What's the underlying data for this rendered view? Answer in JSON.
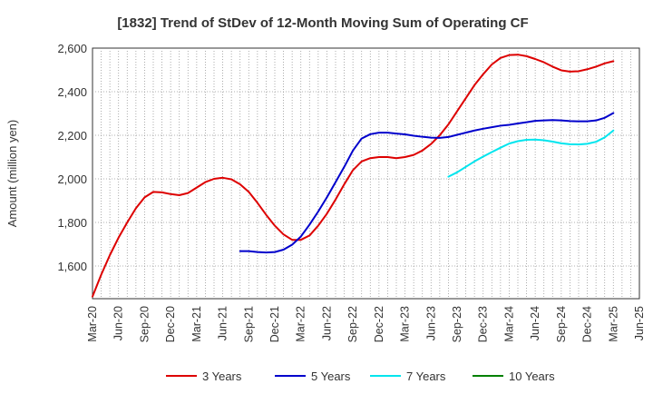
{
  "chart_data": {
    "type": "line",
    "title": "[1832]  Trend of StDev of 12-Month Moving Sum of Operating CF",
    "ylabel": "Amount (million yen)",
    "xlabel": "",
    "ylim": [
      1450,
      2600
    ],
    "yticks": [
      1600,
      1800,
      2000,
      2200,
      2400,
      2600
    ],
    "ytick_labels": [
      "1,600",
      "1,800",
      "2,000",
      "2,200",
      "2,400",
      "2,600"
    ],
    "xticks": [
      "Mar-20",
      "Jun-20",
      "Sep-20",
      "Dec-20",
      "Mar-21",
      "Jun-21",
      "Sep-21",
      "Dec-21",
      "Mar-22",
      "Jun-22",
      "Sep-22",
      "Dec-22",
      "Mar-23",
      "Jun-23",
      "Sep-23",
      "Dec-23",
      "Mar-24",
      "Jun-24",
      "Sep-24",
      "Dec-24",
      "Mar-25",
      "Jun-25"
    ],
    "grid": true,
    "legend_position": "bottom",
    "series": [
      {
        "name": "3 Years",
        "color": "#dd0000",
        "points": [
          [
            "Mar-20",
            1460
          ],
          [
            "Apr-20",
            1560
          ],
          [
            "May-20",
            1650
          ],
          [
            "Jun-20",
            1730
          ],
          [
            "Jul-20",
            1800
          ],
          [
            "Aug-20",
            1865
          ],
          [
            "Sep-20",
            1915
          ],
          [
            "Oct-20",
            1940
          ],
          [
            "Nov-20",
            1938
          ],
          [
            "Dec-20",
            1930
          ],
          [
            "Jan-21",
            1925
          ],
          [
            "Feb-21",
            1935
          ],
          [
            "Mar-21",
            1960
          ],
          [
            "Apr-21",
            1985
          ],
          [
            "May-21",
            2000
          ],
          [
            "Jun-21",
            2005
          ],
          [
            "Jul-21",
            1998
          ],
          [
            "Aug-21",
            1975
          ],
          [
            "Sep-21",
            1940
          ],
          [
            "Oct-21",
            1890
          ],
          [
            "Nov-21",
            1835
          ],
          [
            "Dec-21",
            1785
          ],
          [
            "Jan-22",
            1745
          ],
          [
            "Feb-22",
            1720
          ],
          [
            "Mar-22",
            1720
          ],
          [
            "Apr-22",
            1740
          ],
          [
            "May-22",
            1785
          ],
          [
            "Jun-22",
            1840
          ],
          [
            "Jul-22",
            1905
          ],
          [
            "Aug-22",
            1975
          ],
          [
            "Sep-22",
            2040
          ],
          [
            "Oct-22",
            2080
          ],
          [
            "Nov-22",
            2095
          ],
          [
            "Dec-22",
            2100
          ],
          [
            "Jan-23",
            2100
          ],
          [
            "Feb-23",
            2095
          ],
          [
            "Mar-23",
            2100
          ],
          [
            "Apr-23",
            2110
          ],
          [
            "May-23",
            2130
          ],
          [
            "Jun-23",
            2160
          ],
          [
            "Jul-23",
            2200
          ],
          [
            "Aug-23",
            2250
          ],
          [
            "Sep-23",
            2310
          ],
          [
            "Oct-23",
            2370
          ],
          [
            "Nov-23",
            2430
          ],
          [
            "Dec-23",
            2480
          ],
          [
            "Jan-24",
            2525
          ],
          [
            "Feb-24",
            2555
          ],
          [
            "Mar-24",
            2568
          ],
          [
            "Apr-24",
            2570
          ],
          [
            "May-24",
            2563
          ],
          [
            "Jun-24",
            2550
          ],
          [
            "Jul-24",
            2535
          ],
          [
            "Aug-24",
            2515
          ],
          [
            "Sep-24",
            2498
          ],
          [
            "Oct-24",
            2492
          ],
          [
            "Nov-24",
            2494
          ],
          [
            "Dec-24",
            2503
          ],
          [
            "Jan-25",
            2515
          ],
          [
            "Feb-25",
            2530
          ],
          [
            "Mar-25",
            2540
          ]
        ]
      },
      {
        "name": "5 Years",
        "color": "#0000cc",
        "points": [
          [
            "Aug-21",
            1668
          ],
          [
            "Sep-21",
            1668
          ],
          [
            "Oct-21",
            1664
          ],
          [
            "Nov-21",
            1662
          ],
          [
            "Dec-21",
            1664
          ],
          [
            "Jan-22",
            1675
          ],
          [
            "Feb-22",
            1698
          ],
          [
            "Mar-22",
            1735
          ],
          [
            "Apr-22",
            1790
          ],
          [
            "May-22",
            1850
          ],
          [
            "Jun-22",
            1915
          ],
          [
            "Jul-22",
            1985
          ],
          [
            "Aug-22",
            2055
          ],
          [
            "Sep-22",
            2130
          ],
          [
            "Oct-22",
            2185
          ],
          [
            "Nov-22",
            2205
          ],
          [
            "Dec-22",
            2212
          ],
          [
            "Jan-23",
            2212
          ],
          [
            "Feb-23",
            2208
          ],
          [
            "Mar-23",
            2204
          ],
          [
            "Apr-23",
            2198
          ],
          [
            "May-23",
            2193
          ],
          [
            "Jun-23",
            2189
          ],
          [
            "Jul-23",
            2188
          ],
          [
            "Aug-23",
            2192
          ],
          [
            "Sep-23",
            2202
          ],
          [
            "Oct-23",
            2212
          ],
          [
            "Nov-23",
            2222
          ],
          [
            "Dec-23",
            2230
          ],
          [
            "Jan-24",
            2237
          ],
          [
            "Feb-24",
            2244
          ],
          [
            "Mar-24",
            2248
          ],
          [
            "Apr-24",
            2254
          ],
          [
            "May-24",
            2260
          ],
          [
            "Jun-24",
            2266
          ],
          [
            "Jul-24",
            2268
          ],
          [
            "Aug-24",
            2270
          ],
          [
            "Sep-24",
            2268
          ],
          [
            "Oct-24",
            2265
          ],
          [
            "Nov-24",
            2264
          ],
          [
            "Dec-24",
            2264
          ],
          [
            "Jan-25",
            2268
          ],
          [
            "Feb-25",
            2280
          ],
          [
            "Mar-25",
            2302
          ]
        ]
      },
      {
        "name": "7 Years",
        "color": "#00e5ee",
        "points": [
          [
            "Aug-23",
            2010
          ],
          [
            "Sep-23",
            2030
          ],
          [
            "Oct-23",
            2055
          ],
          [
            "Nov-23",
            2080
          ],
          [
            "Dec-23",
            2102
          ],
          [
            "Jan-24",
            2123
          ],
          [
            "Feb-24",
            2143
          ],
          [
            "Mar-24",
            2162
          ],
          [
            "Apr-24",
            2173
          ],
          [
            "May-24",
            2179
          ],
          [
            "Jun-24",
            2180
          ],
          [
            "Jul-24",
            2177
          ],
          [
            "Aug-24",
            2171
          ],
          [
            "Sep-24",
            2163
          ],
          [
            "Oct-24",
            2159
          ],
          [
            "Nov-24",
            2158
          ],
          [
            "Dec-24",
            2161
          ],
          [
            "Jan-25",
            2170
          ],
          [
            "Feb-25",
            2190
          ],
          [
            "Mar-25",
            2222
          ]
        ]
      },
      {
        "name": "10 Years",
        "color": "#008000",
        "points": []
      }
    ]
  }
}
